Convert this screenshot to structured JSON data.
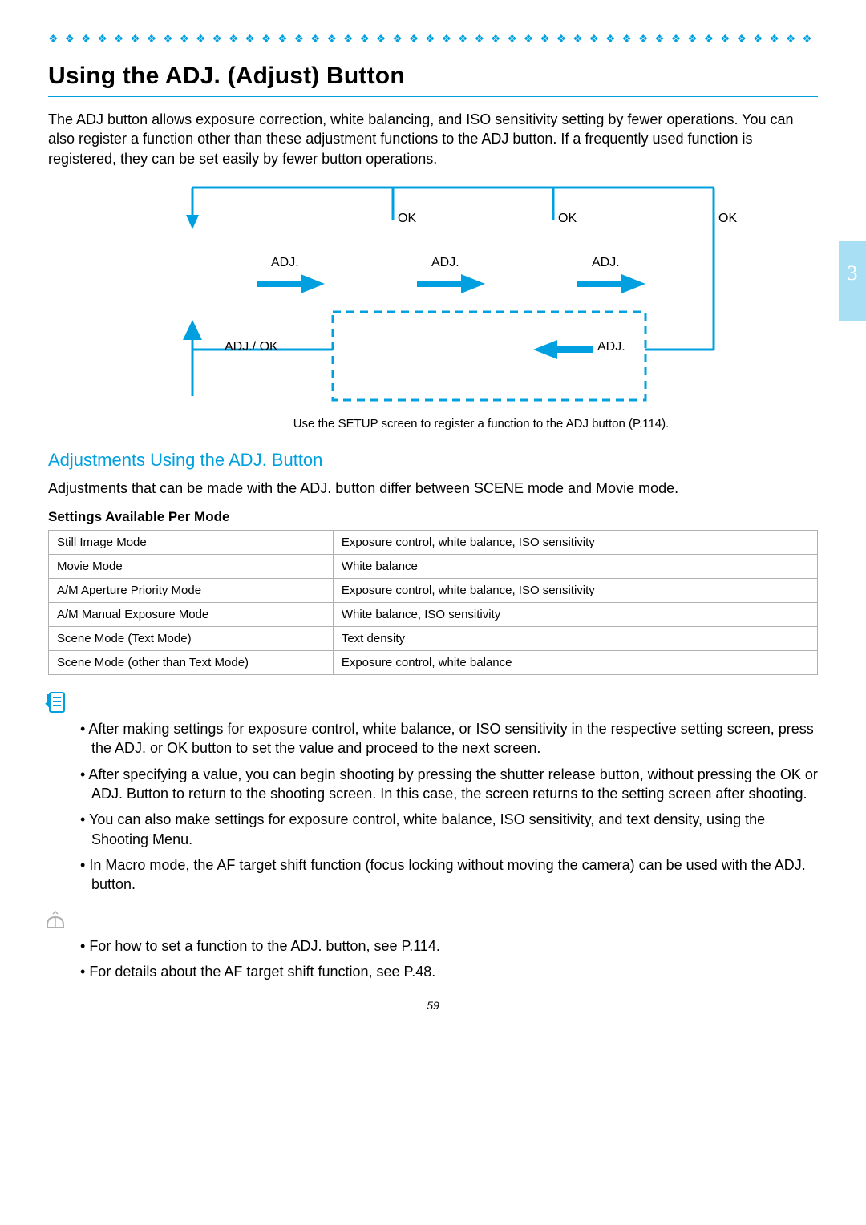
{
  "accent_color": "#00a0e0",
  "tab_bg": "#a8dff5",
  "page_tab_number": "3",
  "page_number": "59",
  "title": "Using the ADJ. (Adjust) Button",
  "intro": "The ADJ button allows exposure correction, white balancing, and ISO sensitivity setting by fewer operations. You can also register a function other than these adjustment functions to the ADJ button. If a frequently used function is registered, they can be set easily by fewer button operations.",
  "diagram": {
    "ok": "OK",
    "adj": "ADJ.",
    "adj_ok": "ADJ./ OK",
    "caption": "Use the SETUP screen to register a function to the ADJ button (P.114).",
    "arrow_color": "#00a0e0",
    "arrow_stroke": 3,
    "dashed_color": "#00a0e0"
  },
  "subheading": "Adjustments Using the ADJ. Button",
  "sub_intro": "Adjustments that can be made with the ADJ. button differ between SCENE mode and Movie mode.",
  "table_heading": "Settings Available Per Mode",
  "table_rows": [
    [
      "Still Image Mode",
      "Exposure control, white balance, ISO sensitivity"
    ],
    [
      "Movie Mode",
      "White balance"
    ],
    [
      "A/M Aperture Priority Mode",
      "Exposure control, white balance, ISO sensitivity"
    ],
    [
      "A/M Manual Exposure Mode",
      "White balance, ISO sensitivity"
    ],
    [
      "Scene Mode (Text Mode)",
      "Text density"
    ],
    [
      "Scene Mode (other than Text Mode)",
      "Exposure control, white balance"
    ]
  ],
  "notes_1": [
    "After making settings for exposure control, white balance, or ISO sensitivity in the respective setting screen, press the ADJ. or OK button to set the value and proceed to the next screen.",
    "After specifying a value, you can begin shooting by pressing the shutter release button, without pressing the OK or ADJ. Button to return to the shooting screen. In this case, the screen returns to the setting screen after shooting.",
    "You can also make settings for exposure control, white balance, ISO sensitivity, and text density, using the Shooting Menu.",
    "In Macro mode, the AF target shift function (focus locking without moving the camera) can be used with the ADJ. button."
  ],
  "notes_2": [
    "For how to set a function to the ADJ. button, see P.114.",
    "For details about the AF target shift function, see P.48."
  ]
}
